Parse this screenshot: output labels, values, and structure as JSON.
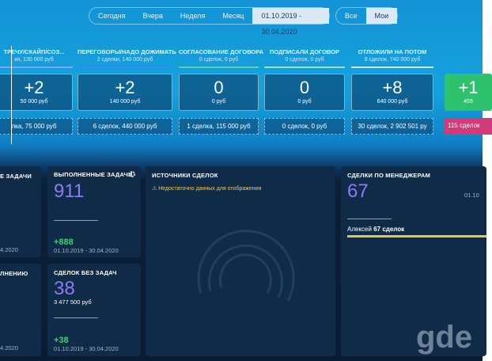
{
  "filters": {
    "periods": [
      "Сегодня",
      "Вчера",
      "Неделя",
      "Месяц",
      "01.10.2019 - 30.04.2020"
    ],
    "owners": [
      "Все",
      "Мои"
    ]
  },
  "stages": [
    {
      "title": "ТРЕЧУ/СКАЙП/СОЗ...",
      "summary": "ки, 130 000 руб",
      "count": "+2",
      "amount": "50 000 руб",
      "total": "лка, 75 000 руб"
    },
    {
      "title": "ПЕРЕГОВОРЫ/НАДО ДОЖИМАТЬ",
      "summary": "2 сделки, 140 000 руб",
      "count": "+2",
      "amount": "140 000 руб",
      "total": "6 сделок, 440 000 руб"
    },
    {
      "title": "СОГЛАСОВАНИЕ ДОГОВОРА",
      "summary": "0 сделок, 0 руб",
      "count": "0",
      "amount": "0 руб",
      "total": "1 сделка, 115 000 руб"
    },
    {
      "title": "ПОДПИСАЛИ ДОГОВОР",
      "summary": "0 сделок, 0 руб",
      "count": "0",
      "amount": "0 руб",
      "total": "0 сделок, 0 руб"
    },
    {
      "title": "ОТЛОЖИЛИ НА ПОТОМ",
      "summary": "9 сделок, 740 000 руб",
      "count": "+8",
      "amount": "640 000 руб",
      "total": "30 сделок, 2 902 501 ру"
    },
    {
      "count": "+1",
      "amount": "455",
      "total": "115 сделок"
    }
  ],
  "widgets": {
    "tasks_partial": {
      "title": "Е ЗАДАЧИ",
      "date": "4.2020"
    },
    "done_partial": {
      "title": "ЛНЕНИЮ",
      "date": "4.2020"
    },
    "completed": {
      "title": "ВЫПОЛНЕННЫЕ ЗАДАЧИ",
      "value": "911",
      "delta": "+888",
      "date": "01.10.2019 - 30.04.2020"
    },
    "no_tasks": {
      "title": "СДЕЛОК БЕЗ ЗАДАЧ",
      "value": "38",
      "amount": "3 477 500 руб",
      "delta": "+38",
      "date": "01.10.2019 - 30.04.2020"
    },
    "sources": {
      "title": "ИСТОЧНИКИ СДЕЛОК",
      "warning": "Недостаточно данных для отображения"
    },
    "managers": {
      "title": "СДЕЛКИ ПО МЕНЕДЖЕРАМ",
      "value": "67",
      "date": "01.10",
      "manager": "Алексей",
      "deals": "67 сделок"
    }
  },
  "watermark": "gde"
}
